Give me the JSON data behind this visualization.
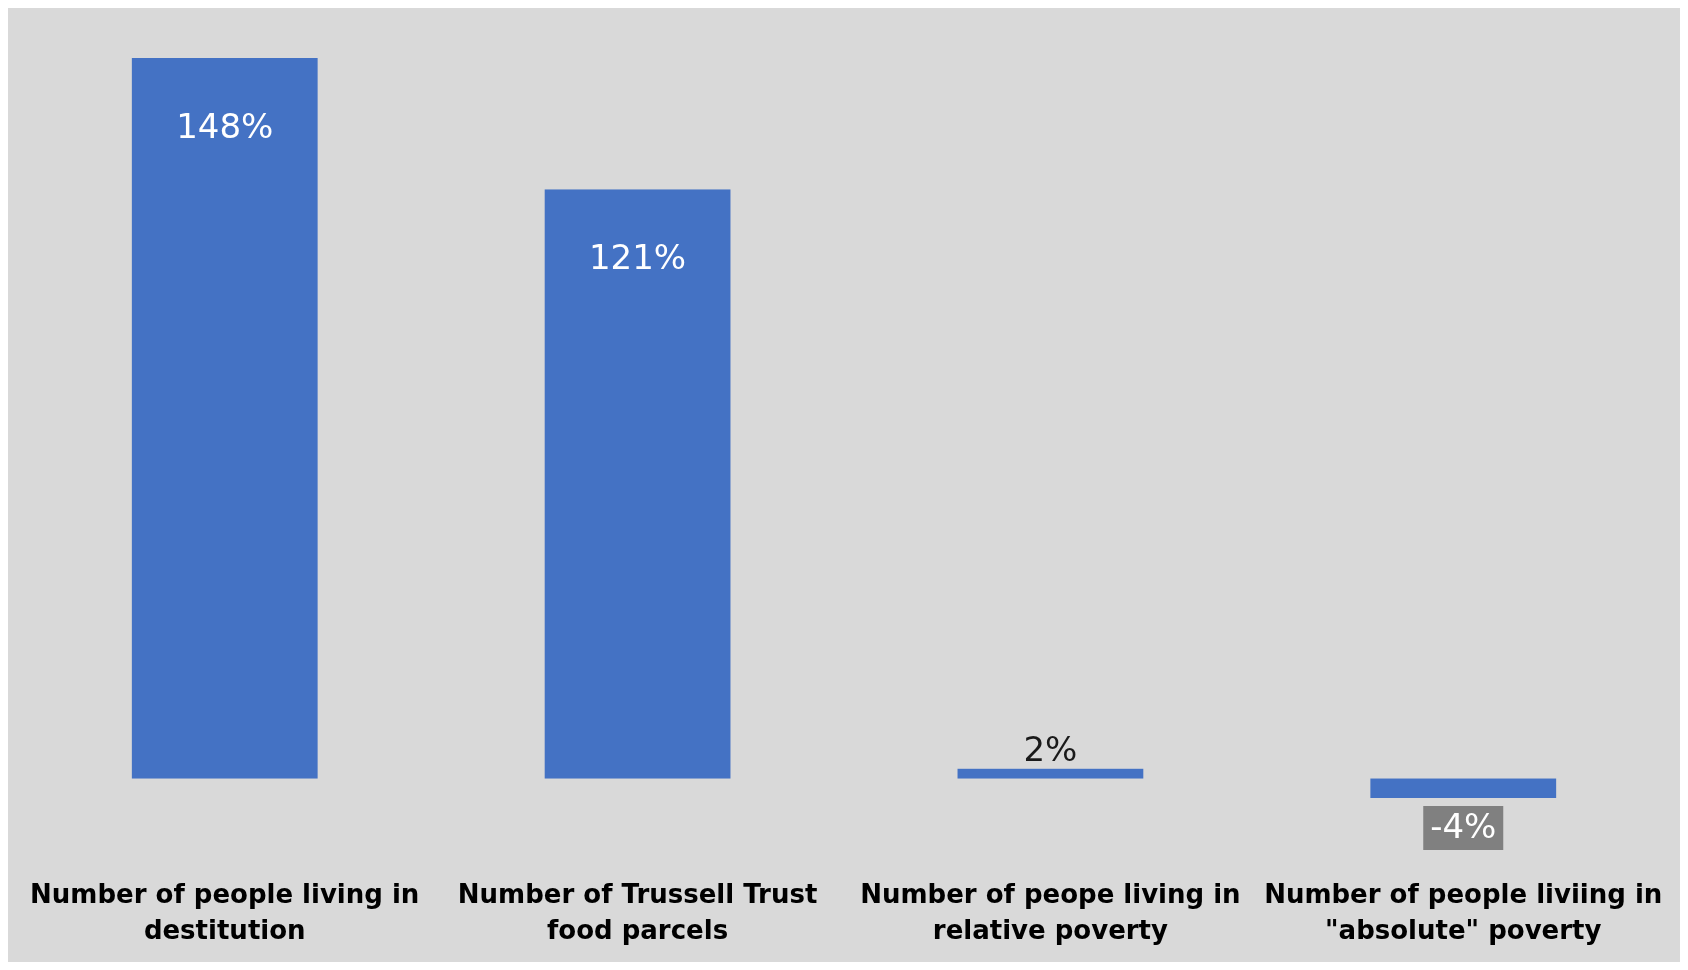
{
  "chart_data": {
    "type": "bar",
    "categories": [
      "Number of people living in destitution",
      "Number of Trussell Trust food parcels",
      "Number of peope living in relative poverty",
      "Number of people liviing in \"absolute\" poverty"
    ],
    "values": [
      148,
      121,
      2,
      -4
    ],
    "color": "#4472c4",
    "value_labels": [
      "148%",
      "121%",
      "2%",
      "-4%"
    ]
  }
}
